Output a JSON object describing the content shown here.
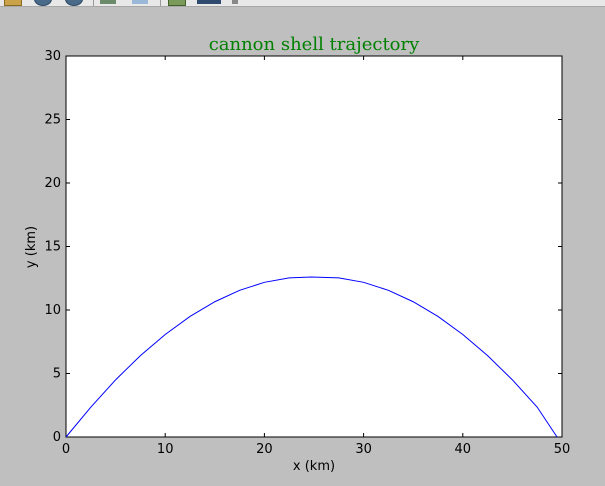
{
  "toolbar": {
    "icons": [
      "home-icon",
      "back-icon",
      "forward-icon",
      "pan-icon",
      "zoom-icon",
      "configure-icon",
      "save-icon"
    ]
  },
  "chart_data": {
    "type": "line",
    "title": "cannon shell trajectory",
    "title_color": "#008000",
    "xlabel": "x (km)",
    "ylabel": "y (km)",
    "xlim": [
      0,
      50
    ],
    "ylim": [
      0,
      30
    ],
    "xticks": [
      "0",
      "10",
      "20",
      "30",
      "40",
      "50"
    ],
    "yticks": [
      "0",
      "5",
      "10",
      "15",
      "20",
      "25",
      "30"
    ],
    "grid": false,
    "series": [
      {
        "color": "#0000ff",
        "x": [
          0,
          2.5,
          5,
          7.5,
          10,
          12.5,
          15,
          17.5,
          20,
          22.5,
          24.75,
          27.5,
          30,
          32.5,
          35,
          37.5,
          40,
          42.5,
          45,
          47.5,
          49.5
        ],
        "y": [
          0,
          2.35,
          4.5,
          6.41,
          8.07,
          9.49,
          10.65,
          11.55,
          12.18,
          12.53,
          12.6,
          12.53,
          12.18,
          11.55,
          10.65,
          9.49,
          8.07,
          6.41,
          4.5,
          2.35,
          0
        ]
      }
    ]
  }
}
